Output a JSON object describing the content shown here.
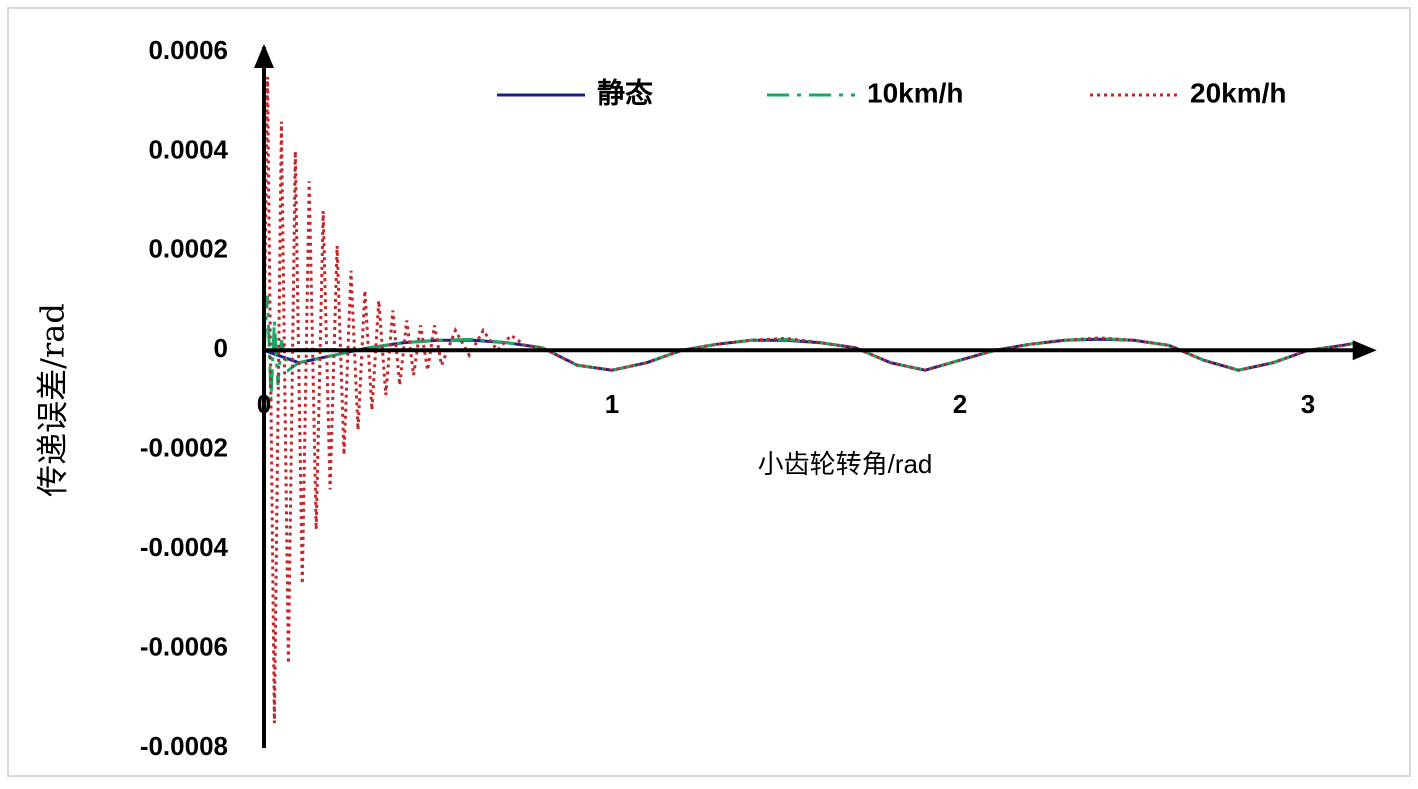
{
  "chart_data": {
    "type": "line",
    "x_label": "小齿轮转角/rad",
    "y_label": "传递误差/rad",
    "xlim": [
      0,
      3.14
    ],
    "ylim": [
      -0.0008,
      0.0006
    ],
    "xticks": [
      0,
      1,
      2,
      3
    ],
    "yticks": [
      -0.0008,
      -0.0006,
      -0.0004,
      -0.0002,
      0,
      0.0002,
      0.0004,
      0.0006
    ],
    "grid": true,
    "legend": "top",
    "series": [
      {
        "name": "静态",
        "color": "#1f1f8a",
        "style": "solid",
        "x": [
          0,
          0.1,
          0.2,
          0.3,
          0.4,
          0.5,
          0.6,
          0.7,
          0.8,
          0.9,
          1.0,
          1.1,
          1.2,
          1.3,
          1.4,
          1.5,
          1.6,
          1.7,
          1.8,
          1.9,
          2.0,
          2.1,
          2.2,
          2.3,
          2.4,
          2.5,
          2.6,
          2.7,
          2.8,
          2.9,
          3.0,
          3.1,
          3.14
        ],
        "values": [
          0,
          -2.5e-05,
          -1e-05,
          5e-06,
          1.5e-05,
          2e-05,
          2e-05,
          1.5e-05,
          5e-06,
          -3e-05,
          -4e-05,
          -2.5e-05,
          0,
          1.2e-05,
          2e-05,
          2e-05,
          1.5e-05,
          5e-06,
          -2.5e-05,
          -4e-05,
          -2e-05,
          0,
          1.2e-05,
          2e-05,
          2.2e-05,
          2e-05,
          1e-05,
          -2e-05,
          -4e-05,
          -2.5e-05,
          0,
          1e-05,
          1.5e-05
        ]
      },
      {
        "name": "10km/h",
        "color": "#1aa868",
        "style": "dashdot",
        "x": [
          0,
          0.01,
          0.02,
          0.03,
          0.04,
          0.05,
          0.07,
          0.1,
          0.2,
          0.3,
          0.4,
          0.5,
          0.6,
          0.7,
          0.8,
          0.9,
          1.0,
          1.1,
          1.2,
          1.3,
          1.4,
          1.5,
          1.6,
          1.7,
          1.8,
          1.9,
          2.0,
          2.1,
          2.2,
          2.3,
          2.4,
          2.5,
          2.6,
          2.7,
          2.8,
          2.9,
          3.0,
          3.1,
          3.14
        ],
        "values": [
          0,
          0.00011,
          -0.0001,
          6e-05,
          -7e-05,
          2e-05,
          -4e-05,
          -2.5e-05,
          -1e-05,
          5e-06,
          1.5e-05,
          2e-05,
          2.2e-05,
          1.5e-05,
          5e-06,
          -3e-05,
          -4e-05,
          -2.5e-05,
          0,
          1.2e-05,
          2e-05,
          2.2e-05,
          1.5e-05,
          5e-06,
          -2.5e-05,
          -4e-05,
          -2e-05,
          0,
          1.2e-05,
          2e-05,
          2.4e-05,
          2e-05,
          1e-05,
          -2e-05,
          -4e-05,
          -2.5e-05,
          0,
          1e-05,
          1.5e-05
        ]
      },
      {
        "name": "20km/h",
        "color": "#c0282d",
        "style": "dotted",
        "x": [
          0,
          0.01,
          0.03,
          0.05,
          0.07,
          0.09,
          0.11,
          0.13,
          0.15,
          0.17,
          0.19,
          0.21,
          0.23,
          0.25,
          0.27,
          0.29,
          0.31,
          0.33,
          0.35,
          0.37,
          0.39,
          0.41,
          0.43,
          0.45,
          0.47,
          0.49,
          0.51,
          0.55,
          0.59,
          0.63,
          0.67,
          0.71,
          0.75,
          0.8,
          0.9,
          1.0,
          1.1,
          1.2,
          1.3,
          1.4,
          1.5,
          1.6,
          1.7,
          1.8,
          1.9,
          2.0,
          2.1,
          2.2,
          2.3,
          2.4,
          2.5,
          2.6,
          2.7,
          2.8,
          2.9,
          3.0,
          3.1,
          3.14
        ],
        "values": [
          0,
          0.00055,
          -0.00075,
          0.00046,
          -0.00063,
          0.0004,
          -0.00047,
          0.00034,
          -0.00036,
          0.00028,
          -0.00028,
          0.00021,
          -0.00021,
          0.00016,
          -0.00016,
          0.00012,
          -0.00012,
          0.0001,
          -9e-05,
          8e-05,
          -7e-05,
          6e-05,
          -5e-05,
          5e-05,
          -4e-05,
          5e-05,
          -3e-05,
          4e-05,
          -1e-05,
          4e-05,
          0,
          3e-05,
          1e-05,
          5e-06,
          -3e-05,
          -4e-05,
          -2.5e-05,
          0,
          1.2e-05,
          2e-05,
          2.4e-05,
          1.5e-05,
          5e-06,
          -2.5e-05,
          -4e-05,
          -2e-05,
          0,
          1.2e-05,
          2e-05,
          2.5e-05,
          2e-05,
          1e-05,
          -2e-05,
          -4e-05,
          -2.5e-05,
          0,
          1e-05,
          1.5e-05
        ]
      }
    ]
  }
}
